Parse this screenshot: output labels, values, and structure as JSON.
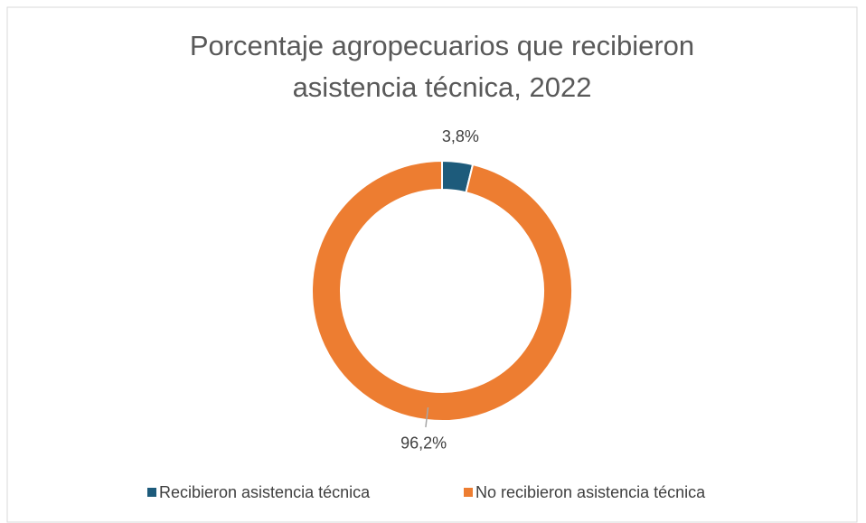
{
  "chart_data": {
    "type": "donut",
    "title": [
      "Porcentaje agropecuarios que recibieron",
      "asistencia técnica, 2022"
    ],
    "categories": [
      "Recibieron asistencia técnica",
      "No recibieron asistencia técnica"
    ],
    "values": [
      3.8,
      96.2
    ],
    "value_labels": [
      "3,8%",
      "96,2%"
    ],
    "colors": [
      "#1d5b7b",
      "#ed7d31"
    ],
    "legend": "bottom"
  }
}
